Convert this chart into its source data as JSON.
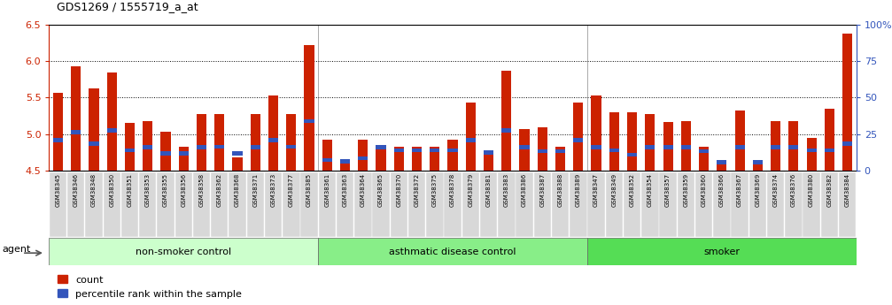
{
  "title": "GDS1269 / 1555719_a_at",
  "ylim_left": [
    4.5,
    6.5
  ],
  "ylim_right": [
    0,
    100
  ],
  "yticks_left": [
    4.5,
    5.0,
    5.5,
    6.0,
    6.5
  ],
  "yticks_right": [
    0,
    25,
    50,
    75,
    100
  ],
  "ytick_labels_right": [
    "0",
    "25",
    "50",
    "75",
    "100%"
  ],
  "bar_color": "#cc2200",
  "blue_color": "#3355bb",
  "categories": [
    "GSM38345",
    "GSM38346",
    "GSM38348",
    "GSM38350",
    "GSM38351",
    "GSM38353",
    "GSM38355",
    "GSM38356",
    "GSM38358",
    "GSM38362",
    "GSM38368",
    "GSM38371",
    "GSM38373",
    "GSM38377",
    "GSM38385",
    "GSM38361",
    "GSM38363",
    "GSM38364",
    "GSM38365",
    "GSM38370",
    "GSM38372",
    "GSM38375",
    "GSM38378",
    "GSM38379",
    "GSM38381",
    "GSM38383",
    "GSM38386",
    "GSM38387",
    "GSM38388",
    "GSM38389",
    "GSM38347",
    "GSM38349",
    "GSM38352",
    "GSM38354",
    "GSM38357",
    "GSM38359",
    "GSM38360",
    "GSM38366",
    "GSM38367",
    "GSM38369",
    "GSM38374",
    "GSM38376",
    "GSM38380",
    "GSM38382",
    "GSM38384"
  ],
  "red_values": [
    5.57,
    5.93,
    5.62,
    5.84,
    5.15,
    5.18,
    5.03,
    4.83,
    5.27,
    5.27,
    4.68,
    5.27,
    5.53,
    5.27,
    6.22,
    4.93,
    4.65,
    4.93,
    4.83,
    4.83,
    4.83,
    4.83,
    4.93,
    5.43,
    4.73,
    5.87,
    5.07,
    5.1,
    4.83,
    5.43,
    5.53,
    5.3,
    5.3,
    5.27,
    5.17,
    5.18,
    4.83,
    4.65,
    5.32,
    4.65,
    5.18,
    5.18,
    4.95,
    5.35,
    6.38
  ],
  "blue_values": [
    4.92,
    5.03,
    4.87,
    5.05,
    4.78,
    4.82,
    4.74,
    4.74,
    4.82,
    4.83,
    4.74,
    4.82,
    4.92,
    4.83,
    5.18,
    4.65,
    4.63,
    4.67,
    4.82,
    4.78,
    4.78,
    4.78,
    4.78,
    4.92,
    4.75,
    5.05,
    4.82,
    4.77,
    4.77,
    4.92,
    4.82,
    4.78,
    4.72,
    4.82,
    4.82,
    4.82,
    4.77,
    4.62,
    4.82,
    4.62,
    4.82,
    4.82,
    4.78,
    4.78,
    4.87
  ],
  "groups": [
    {
      "label": "non-smoker control",
      "start": 0,
      "end": 14,
      "color": "#ccffcc"
    },
    {
      "label": "asthmatic disease control",
      "start": 15,
      "end": 29,
      "color": "#88ee88"
    },
    {
      "label": "smoker",
      "start": 30,
      "end": 44,
      "color": "#55dd55"
    }
  ],
  "legend_count_label": "count",
  "legend_pct_label": "percentile rank within the sample",
  "agent_label": "agent"
}
